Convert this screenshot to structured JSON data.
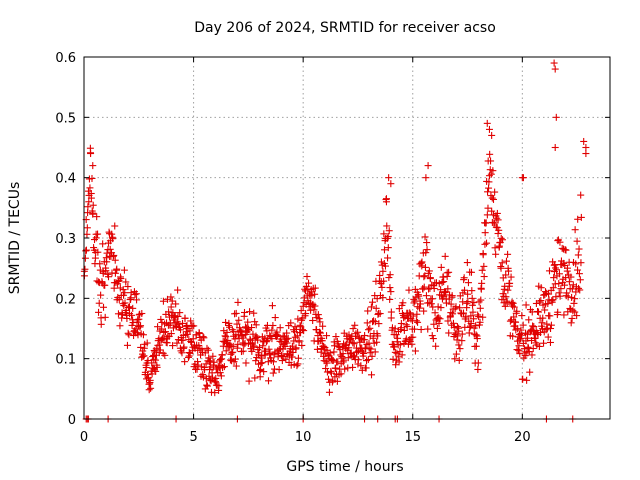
{
  "chart_data": {
    "type": "scatter",
    "title": "Day 206 of 2024, SRMTID for receiver acso",
    "xlabel": "GPS time / hours",
    "ylabel": "SRMTID / TECUs",
    "xlim": [
      0,
      24
    ],
    "ylim": [
      0,
      0.6
    ],
    "xticks": [
      0,
      5,
      10,
      15,
      20
    ],
    "xtick_labels": [
      "0",
      "5",
      "10",
      "15",
      "20"
    ],
    "yticks": [
      0,
      0.1,
      0.2,
      0.3,
      0.4,
      0.5,
      0.6
    ],
    "ytick_labels": [
      "0",
      "0.1",
      "0.2",
      "0.3",
      "0.4",
      "0.5",
      "0.6"
    ],
    "grid": true,
    "marker": "+",
    "color": "#e00000",
    "series": [
      {
        "name": "SRMTID",
        "profile": [
          [
            0.0,
            0.24,
            0.03
          ],
          [
            0.3,
            0.42,
            0.04
          ],
          [
            0.5,
            0.28,
            0.06
          ],
          [
            0.8,
            0.2,
            0.06
          ],
          [
            1.2,
            0.3,
            0.06
          ],
          [
            1.6,
            0.2,
            0.05
          ],
          [
            2.0,
            0.18,
            0.05
          ],
          [
            2.5,
            0.16,
            0.05
          ],
          [
            3.0,
            0.06,
            0.03
          ],
          [
            3.5,
            0.14,
            0.05
          ],
          [
            4.0,
            0.16,
            0.05
          ],
          [
            4.5,
            0.14,
            0.04
          ],
          [
            5.0,
            0.13,
            0.04
          ],
          [
            5.5,
            0.1,
            0.04
          ],
          [
            6.0,
            0.07,
            0.03
          ],
          [
            6.5,
            0.12,
            0.04
          ],
          [
            7.0,
            0.14,
            0.05
          ],
          [
            7.5,
            0.13,
            0.05
          ],
          [
            8.0,
            0.1,
            0.04
          ],
          [
            8.5,
            0.13,
            0.05
          ],
          [
            9.0,
            0.12,
            0.04
          ],
          [
            9.5,
            0.12,
            0.04
          ],
          [
            10.0,
            0.16,
            0.05
          ],
          [
            10.3,
            0.22,
            0.04
          ],
          [
            10.8,
            0.12,
            0.04
          ],
          [
            11.2,
            0.09,
            0.04
          ],
          [
            11.8,
            0.1,
            0.04
          ],
          [
            12.3,
            0.13,
            0.04
          ],
          [
            12.8,
            0.12,
            0.04
          ],
          [
            13.2,
            0.14,
            0.05
          ],
          [
            13.5,
            0.2,
            0.05
          ],
          [
            13.8,
            0.33,
            0.06
          ],
          [
            14.1,
            0.12,
            0.04
          ],
          [
            14.6,
            0.16,
            0.05
          ],
          [
            15.0,
            0.15,
            0.05
          ],
          [
            15.6,
            0.25,
            0.08
          ],
          [
            16.0,
            0.17,
            0.05
          ],
          [
            16.5,
            0.22,
            0.06
          ],
          [
            17.0,
            0.14,
            0.05
          ],
          [
            17.5,
            0.2,
            0.06
          ],
          [
            18.0,
            0.13,
            0.05
          ],
          [
            18.5,
            0.42,
            0.06
          ],
          [
            18.9,
            0.3,
            0.06
          ],
          [
            19.3,
            0.22,
            0.06
          ],
          [
            19.7,
            0.14,
            0.05
          ],
          [
            20.0,
            0.12,
            0.05
          ],
          [
            20.5,
            0.15,
            0.05
          ],
          [
            21.0,
            0.17,
            0.05
          ],
          [
            21.5,
            0.22,
            0.07
          ],
          [
            21.8,
            0.24,
            0.06
          ],
          [
            22.3,
            0.22,
            0.05
          ],
          [
            22.7,
            0.3,
            0.12
          ]
        ],
        "peaks": [
          [
            21.45,
            0.59
          ],
          [
            21.5,
            0.58
          ],
          [
            21.55,
            0.5
          ],
          [
            21.5,
            0.45
          ],
          [
            18.4,
            0.49
          ],
          [
            18.5,
            0.48
          ],
          [
            18.6,
            0.47
          ],
          [
            15.7,
            0.42
          ],
          [
            15.6,
            0.4
          ],
          [
            13.9,
            0.4
          ],
          [
            14.0,
            0.39
          ],
          [
            13.8,
            0.36
          ],
          [
            20.0,
            0.4
          ],
          [
            20.05,
            0.4
          ],
          [
            0.3,
            0.44
          ],
          [
            0.4,
            0.42
          ],
          [
            22.8,
            0.46
          ],
          [
            22.9,
            0.45
          ],
          [
            22.9,
            0.44
          ]
        ],
        "zeros": [
          0.1,
          0.15,
          0.2,
          1.1,
          4.2,
          7.0,
          10.0,
          12.8,
          13.4,
          14.2,
          14.3,
          16.2,
          21.1,
          22.3
        ]
      }
    ]
  }
}
